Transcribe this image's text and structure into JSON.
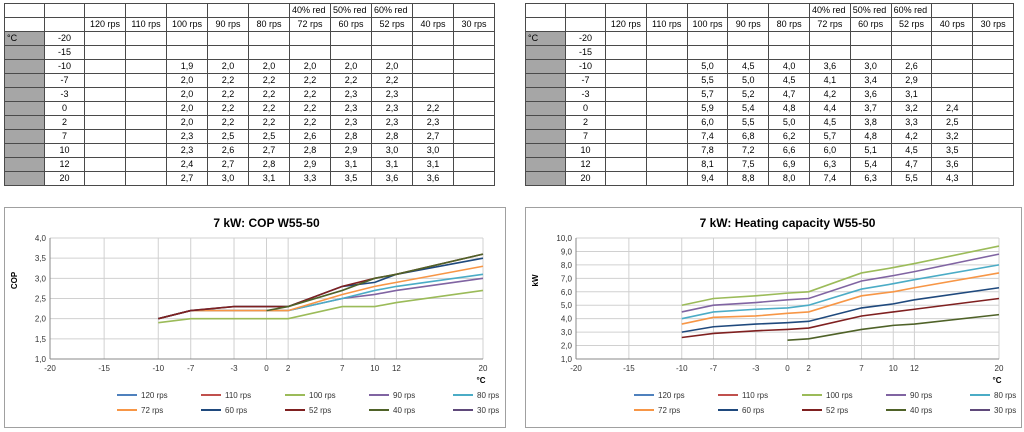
{
  "tables": [
    {
      "unit": "°C",
      "header_top": [
        "",
        "",
        "",
        "",
        "",
        "40% red",
        "50% red",
        "60% red",
        "",
        ""
      ],
      "header_rps": [
        "120 rps",
        "110 rps",
        "100 rps",
        "90 rps",
        "80 rps",
        "72 rps",
        "60 rps",
        "52 rps",
        "40 rps",
        "30 rps"
      ],
      "rows": [
        {
          "t": "-20",
          "v": [
            "",
            "",
            "",
            "",
            "",
            "",
            "",
            "",
            "",
            ""
          ]
        },
        {
          "t": "-15",
          "v": [
            "",
            "",
            "",
            "",
            "",
            "",
            "",
            "",
            "",
            ""
          ]
        },
        {
          "t": "-10",
          "v": [
            "",
            "",
            "1,9",
            "2,0",
            "2,0",
            "2,0",
            "2,0",
            "2,0",
            "",
            ""
          ]
        },
        {
          "t": "-7",
          "v": [
            "",
            "",
            "2,0",
            "2,2",
            "2,2",
            "2,2",
            "2,2",
            "2,2",
            "",
            ""
          ]
        },
        {
          "t": "-3",
          "v": [
            "",
            "",
            "2,0",
            "2,2",
            "2,2",
            "2,2",
            "2,3",
            "2,3",
            "",
            ""
          ]
        },
        {
          "t": "0",
          "v": [
            "",
            "",
            "2,0",
            "2,2",
            "2,2",
            "2,2",
            "2,3",
            "2,3",
            "2,2",
            ""
          ]
        },
        {
          "t": "2",
          "v": [
            "",
            "",
            "2,0",
            "2,2",
            "2,2",
            "2,2",
            "2,3",
            "2,3",
            "2,3",
            ""
          ]
        },
        {
          "t": "7",
          "v": [
            "",
            "",
            "2,3",
            "2,5",
            "2,5",
            "2,6",
            "2,8",
            "2,8",
            "2,7",
            ""
          ]
        },
        {
          "t": "10",
          "v": [
            "",
            "",
            "2,3",
            "2,6",
            "2,7",
            "2,8",
            "2,9",
            "3,0",
            "3,0",
            ""
          ]
        },
        {
          "t": "12",
          "v": [
            "",
            "",
            "2,4",
            "2,7",
            "2,8",
            "2,9",
            "3,1",
            "3,1",
            "3,1",
            ""
          ]
        },
        {
          "t": "20",
          "v": [
            "",
            "",
            "2,7",
            "3,0",
            "3,1",
            "3,3",
            "3,5",
            "3,6",
            "3,6",
            ""
          ]
        }
      ]
    },
    {
      "unit": "°C",
      "header_top": [
        "",
        "",
        "",
        "",
        "",
        "40% red",
        "50% red",
        "60% red",
        "",
        ""
      ],
      "header_rps": [
        "120 rps",
        "110 rps",
        "100 rps",
        "90 rps",
        "80 rps",
        "72 rps",
        "60 rps",
        "52 rps",
        "40 rps",
        "30 rps"
      ],
      "rows": [
        {
          "t": "-20",
          "v": [
            "",
            "",
            "",
            "",
            "",
            "",
            "",
            "",
            "",
            ""
          ]
        },
        {
          "t": "-15",
          "v": [
            "",
            "",
            "",
            "",
            "",
            "",
            "",
            "",
            "",
            ""
          ]
        },
        {
          "t": "-10",
          "v": [
            "",
            "",
            "5,0",
            "4,5",
            "4,0",
            "3,6",
            "3,0",
            "2,6",
            "",
            ""
          ]
        },
        {
          "t": "-7",
          "v": [
            "",
            "",
            "5,5",
            "5,0",
            "4,5",
            "4,1",
            "3,4",
            "2,9",
            "",
            ""
          ]
        },
        {
          "t": "-3",
          "v": [
            "",
            "",
            "5,7",
            "5,2",
            "4,7",
            "4,2",
            "3,6",
            "3,1",
            "",
            ""
          ]
        },
        {
          "t": "0",
          "v": [
            "",
            "",
            "5,9",
            "5,4",
            "4,8",
            "4,4",
            "3,7",
            "3,2",
            "2,4",
            ""
          ]
        },
        {
          "t": "2",
          "v": [
            "",
            "",
            "6,0",
            "5,5",
            "5,0",
            "4,5",
            "3,8",
            "3,3",
            "2,5",
            ""
          ]
        },
        {
          "t": "7",
          "v": [
            "",
            "",
            "7,4",
            "6,8",
            "6,2",
            "5,7",
            "4,8",
            "4,2",
            "3,2",
            ""
          ]
        },
        {
          "t": "10",
          "v": [
            "",
            "",
            "7,8",
            "7,2",
            "6,6",
            "6,0",
            "5,1",
            "4,5",
            "3,5",
            ""
          ]
        },
        {
          "t": "12",
          "v": [
            "",
            "",
            "8,1",
            "7,5",
            "6,9",
            "6,3",
            "5,4",
            "4,7",
            "3,6",
            ""
          ]
        },
        {
          "t": "20",
          "v": [
            "",
            "",
            "9,4",
            "8,8",
            "8,0",
            "7,4",
            "6,3",
            "5,5",
            "4,3",
            ""
          ]
        }
      ]
    }
  ],
  "chart_data": [
    {
      "type": "line",
      "title": "7 kW: COP W55-50",
      "xlabel": "°C",
      "ylabel": "COP",
      "xlim": [
        -20,
        20
      ],
      "ylim": [
        1.0,
        4.0
      ],
      "x_ticks": [
        "-20",
        "-15",
        "-10",
        "-7",
        "-3",
        "0",
        "2",
        "7",
        "10",
        "12",
        "20"
      ],
      "y_ticks": [
        "1,0",
        "1,5",
        "2,0",
        "2,5",
        "3,0",
        "3,5",
        "4,0"
      ],
      "grid": true,
      "legend_position": "bottom",
      "x": [
        -10,
        -7,
        -3,
        0,
        2,
        7,
        10,
        12,
        20
      ],
      "series": [
        {
          "name": "120 rps",
          "color": "#4f81bd",
          "values": [
            null,
            null,
            null,
            null,
            null,
            null,
            null,
            null,
            null
          ]
        },
        {
          "name": "110 rps",
          "color": "#c0504d",
          "values": [
            null,
            null,
            null,
            null,
            null,
            null,
            null,
            null,
            null
          ]
        },
        {
          "name": "100 rps",
          "color": "#9bbb59",
          "values": [
            1.9,
            2.0,
            2.0,
            2.0,
            2.0,
            2.3,
            2.3,
            2.4,
            2.7
          ]
        },
        {
          "name": "90 rps",
          "color": "#8064a2",
          "values": [
            2.0,
            2.2,
            2.2,
            2.2,
            2.2,
            2.5,
            2.6,
            2.7,
            3.0
          ]
        },
        {
          "name": "80 rps",
          "color": "#4bacc6",
          "values": [
            2.0,
            2.2,
            2.2,
            2.2,
            2.2,
            2.5,
            2.7,
            2.8,
            3.1
          ]
        },
        {
          "name": "72 rps",
          "color": "#f79646",
          "values": [
            2.0,
            2.2,
            2.2,
            2.2,
            2.2,
            2.6,
            2.8,
            2.9,
            3.3
          ]
        },
        {
          "name": "60 rps",
          "color": "#1f497d",
          "values": [
            2.0,
            2.2,
            2.3,
            2.3,
            2.3,
            2.8,
            2.9,
            3.1,
            3.5
          ]
        },
        {
          "name": "52 rps",
          "color": "#7f2020",
          "values": [
            2.0,
            2.2,
            2.3,
            2.3,
            2.3,
            2.8,
            3.0,
            3.1,
            3.6
          ]
        },
        {
          "name": "40 rps",
          "color": "#4f6228",
          "values": [
            null,
            null,
            null,
            2.2,
            2.3,
            2.7,
            3.0,
            3.1,
            3.6
          ]
        },
        {
          "name": "30 rps",
          "color": "#5f497a",
          "values": [
            null,
            null,
            null,
            null,
            null,
            null,
            null,
            null,
            null
          ]
        }
      ]
    },
    {
      "type": "line",
      "title": "7 kW: Heating capacity W55-50",
      "xlabel": "°C",
      "ylabel": "kW",
      "xlim": [
        -20,
        20
      ],
      "ylim": [
        1.0,
        10.0
      ],
      "x_ticks": [
        "-20",
        "-15",
        "-10",
        "-7",
        "-3",
        "0",
        "2",
        "7",
        "10",
        "12",
        "20"
      ],
      "y_ticks": [
        "1,0",
        "2,0",
        "3,0",
        "4,0",
        "5,0",
        "6,0",
        "7,0",
        "8,0",
        "9,0",
        "10,0"
      ],
      "grid": true,
      "legend_position": "bottom",
      "x": [
        -10,
        -7,
        -3,
        0,
        2,
        7,
        10,
        12,
        20
      ],
      "series": [
        {
          "name": "120 rps",
          "color": "#4f81bd",
          "values": [
            null,
            null,
            null,
            null,
            null,
            null,
            null,
            null,
            null
          ]
        },
        {
          "name": "110 rps",
          "color": "#c0504d",
          "values": [
            null,
            null,
            null,
            null,
            null,
            null,
            null,
            null,
            null
          ]
        },
        {
          "name": "100 rps",
          "color": "#9bbb59",
          "values": [
            5.0,
            5.5,
            5.7,
            5.9,
            6.0,
            7.4,
            7.8,
            8.1,
            9.4
          ]
        },
        {
          "name": "90 rps",
          "color": "#8064a2",
          "values": [
            4.5,
            5.0,
            5.2,
            5.4,
            5.5,
            6.8,
            7.2,
            7.5,
            8.8
          ]
        },
        {
          "name": "80 rps",
          "color": "#4bacc6",
          "values": [
            4.0,
            4.5,
            4.7,
            4.8,
            5.0,
            6.2,
            6.6,
            6.9,
            8.0
          ]
        },
        {
          "name": "72 rps",
          "color": "#f79646",
          "values": [
            3.6,
            4.1,
            4.2,
            4.4,
            4.5,
            5.7,
            6.0,
            6.3,
            7.4
          ]
        },
        {
          "name": "60 rps",
          "color": "#1f497d",
          "values": [
            3.0,
            3.4,
            3.6,
            3.7,
            3.8,
            4.8,
            5.1,
            5.4,
            6.3
          ]
        },
        {
          "name": "52 rps",
          "color": "#7f2020",
          "values": [
            2.6,
            2.9,
            3.1,
            3.2,
            3.3,
            4.2,
            4.5,
            4.7,
            5.5
          ]
        },
        {
          "name": "40 rps",
          "color": "#4f6228",
          "values": [
            null,
            null,
            null,
            2.4,
            2.5,
            3.2,
            3.5,
            3.6,
            4.3
          ]
        },
        {
          "name": "30 rps",
          "color": "#5f497a",
          "values": [
            null,
            null,
            null,
            null,
            null,
            null,
            null,
            null,
            null
          ]
        }
      ]
    }
  ]
}
